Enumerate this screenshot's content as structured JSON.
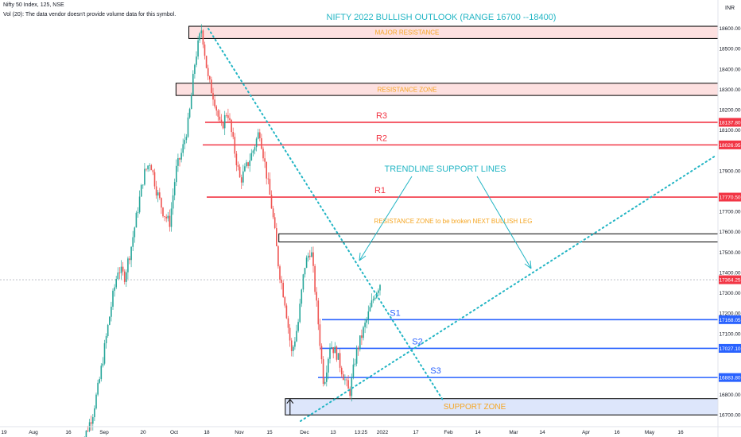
{
  "header": {
    "symbol_line": "Nifty 50 Index, 125, NSE",
    "volume_note": "Vol (20): The data vendor doesn't provide volume data for this symbol.",
    "currency": "INR"
  },
  "chart_data": {
    "type": "candlestick",
    "title": "NIFTY 2022 BULLISH OUTLOOK (RANGE 16700 --18400)",
    "ylim": [
      16650,
      18700
    ],
    "yticks": [
      "18600.00",
      "18500.00",
      "18400.00",
      "18300.00",
      "18200.00",
      "18100.00",
      "18000.00",
      "17900.00",
      "17800.00",
      "17700.00",
      "17600.00",
      "17500.00",
      "17400.00",
      "17300.00",
      "17200.00",
      "17100.00",
      "17000.00",
      "16900.00",
      "16800.00",
      "16700.00"
    ],
    "xticks": [
      "19",
      "Aug",
      "16",
      "Sep",
      "20",
      "Oct",
      "18",
      "Nov",
      "15",
      "Dec",
      "13",
      "13:25",
      "2022",
      "17",
      "Feb",
      "14",
      "Mar",
      "14",
      "Apr",
      "16",
      "May",
      "16"
    ],
    "price_path": [
      16520,
      16610,
      16700,
      16850,
      17050,
      17250,
      17420,
      17380,
      17520,
      17700,
      17880,
      17950,
      17800,
      17700,
      17640,
      17900,
      18000,
      18150,
      18450,
      18600,
      18350,
      18250,
      18100,
      18200,
      18020,
      17850,
      17920,
      18000,
      18100,
      17900,
      17700,
      17420,
      17250,
      17000,
      17150,
      17430,
      17520,
      17200,
      16850,
      17050,
      17000,
      16900,
      16800,
      17000,
      17100,
      17200,
      17300,
      17364.25
    ],
    "zones": [
      {
        "label": "MAJOR RESISTANCE",
        "low": 18550,
        "high": 18610,
        "from": 18,
        "fill": "#fde0e0"
      },
      {
        "label": "RESISTANCE ZONE",
        "low": 18270,
        "high": 18330,
        "from": 16,
        "fill": "#fde0e0"
      },
      {
        "label": "",
        "low": 17550,
        "high": 17590,
        "from": 32,
        "fill": "#ffffff"
      },
      {
        "label": "SUPPORT ZONE",
        "low": 16700,
        "high": 16780,
        "from": 33,
        "fill": "#dde6fb"
      }
    ],
    "levels": [
      {
        "label": "R3",
        "value": 18137.8,
        "tag": "18137.80",
        "color": "#f23645"
      },
      {
        "label": "R2",
        "value": 18026.95,
        "tag": "18026.95",
        "color": "#f23645"
      },
      {
        "label": "R1",
        "value": 17770.5,
        "tag": "17770.50",
        "color": "#f23645"
      },
      {
        "label": "S1",
        "value": 17168.05,
        "tag": "17168.05",
        "color": "#2962ff"
      },
      {
        "label": "S2",
        "value": 17027.1,
        "tag": "17027.10",
        "color": "#2962ff"
      },
      {
        "label": "S3",
        "value": 16883.8,
        "tag": "16883.80",
        "color": "#2962ff"
      }
    ],
    "last_price": {
      "value": 17364.25,
      "tag": "17364.25",
      "color": "#f23645"
    },
    "annotations": {
      "trendline": "TRENDLINE SUPPORT LINES",
      "break_zone": "RESISTANCE  ZONE to be broken  NEXT BULLISH LEG"
    },
    "colors": {
      "up": "#26a69a",
      "down": "#ef5350",
      "trendline": "#22b5c4",
      "title": "#22b5c4",
      "zone_text": "#f5a623"
    },
    "grid": false
  }
}
